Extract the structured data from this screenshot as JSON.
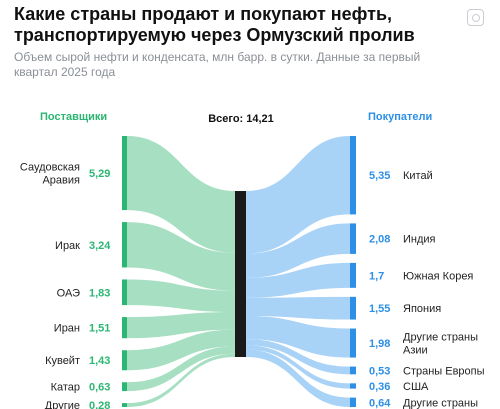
{
  "title": "Какие страны продают и покупают нефть, транспортируемую через Ормузский пролив",
  "subtitle": "Объем сырой нефти и конденсата, млн барр. в сутки. Данные за первый квартал 2025 года",
  "chart_data": {
    "type": "sankey",
    "suppliers_label": "Поставщики",
    "buyers_label": "Покупатели",
    "total_label": "Всего: 14,21",
    "total": 14.21,
    "suppliers": [
      {
        "name": "Саудовская\nАравия",
        "value": 5.29,
        "label": "5,29"
      },
      {
        "name": "Ирак",
        "value": 3.24,
        "label": "3,24"
      },
      {
        "name": "ОАЭ",
        "value": 1.83,
        "label": "1,83"
      },
      {
        "name": "Иран",
        "value": 1.51,
        "label": "1,51"
      },
      {
        "name": "Кувейт",
        "value": 1.43,
        "label": "1,43"
      },
      {
        "name": "Катар",
        "value": 0.63,
        "label": "0,63"
      },
      {
        "name": "Другие",
        "value": 0.28,
        "label": "0,28"
      }
    ],
    "buyers": [
      {
        "name": "Китай",
        "value": 5.35,
        "label": "5,35"
      },
      {
        "name": "Индия",
        "value": 2.08,
        "label": "2,08"
      },
      {
        "name": "Южная Корея",
        "value": 1.7,
        "label": "1,7"
      },
      {
        "name": "Япония",
        "value": 1.55,
        "label": "1,55"
      },
      {
        "name": "Другие страны\nАзии",
        "value": 1.98,
        "label": "1,98"
      },
      {
        "name": "Страны Европы",
        "value": 0.53,
        "label": "0,53"
      },
      {
        "name": "США",
        "value": 0.36,
        "label": "0,36"
      },
      {
        "name": "Другие страны",
        "value": 0.64,
        "label": "0,64"
      }
    ],
    "colors": {
      "supplier": "#2bb673",
      "supplier_flow": "#a6dfc1",
      "buyer": "#2e8fe6",
      "buyer_flow": "#a9d2f7",
      "center": "#1a1a1a"
    }
  }
}
